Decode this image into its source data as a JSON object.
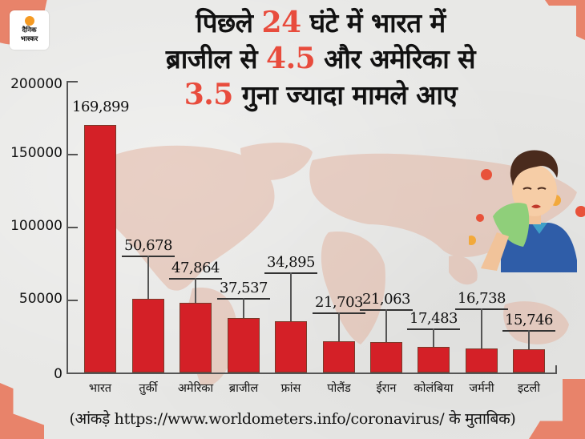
{
  "brand": {
    "logo_line1": "दैनिक",
    "logo_line2": "भास्कर",
    "colors": {
      "accent": "#e8836a",
      "logo_dot": "#f59a23",
      "bar": "#d42027",
      "highlight_number": "#e84c3d"
    }
  },
  "headline": {
    "line1_pre": "पिछले ",
    "line1_num": "24",
    "line1_post": " घंटे में भारत में",
    "line2_pre": "ब्राजील से ",
    "line2_num": "4.5",
    "line2_post": " और अमेरिका से",
    "line3_num": "3.5",
    "line3_post": " गुना ज्यादा मामले आए"
  },
  "source_note": "(आंकड़े https://www.worldometers.info/coronavirus/ के मुताबिक)",
  "chart_data": {
    "type": "bar",
    "title": "पिछले 24 घंटे में भारत में ब्राजील से 4.5 और अमेरिका से 3.5 गुना ज्यादा मामले आए",
    "xlabel": "",
    "ylabel": "",
    "ylim": [
      0,
      200000
    ],
    "yticks": [
      0,
      50000,
      100000,
      150000,
      200000
    ],
    "ytick_labels": [
      "0",
      "50000",
      "100000",
      "150000",
      "200000"
    ],
    "grid": false,
    "legend": null,
    "categories": [
      "भारत",
      "तुर्की",
      "अमेरिका",
      "ब्राजील",
      "फ्रांस",
      "पोलैंड",
      "ईरान",
      "कोलंबिया",
      "जर्मनी",
      "इटली"
    ],
    "values": [
      169899,
      50678,
      47864,
      37537,
      34895,
      21703,
      21063,
      17483,
      16738,
      15746
    ],
    "value_labels": [
      "169,899",
      "50,678",
      "47,864",
      "37,537",
      "34,895",
      "21,703",
      "21,063",
      "17,483",
      "16,738",
      "15,746"
    ],
    "annotations": [
      "(आंकड़े https://www.worldometers.info/coronavirus/ के मुताबिक)"
    ]
  }
}
